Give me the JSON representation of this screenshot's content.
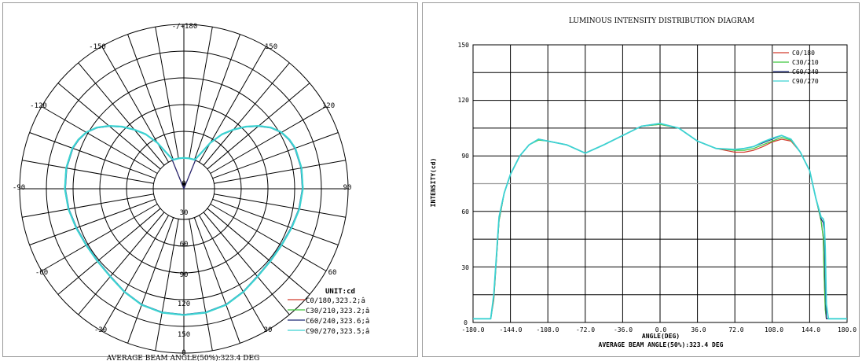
{
  "colors": {
    "c0_180": "#d23c2d",
    "c30_210": "#3ec83e",
    "c60_240": "#1e2a78",
    "c90_270": "#3cd2d2",
    "grid": "#000000",
    "reference_line": "#9a9a9a"
  },
  "chart_data": [
    {
      "type": "polar",
      "angle_labels": [
        "-/+180",
        "150",
        "120",
        "90",
        "60",
        "-150",
        "-120",
        "-90",
        "-60",
        "-30",
        "30",
        "0"
      ],
      "radial_ticks": [
        "0",
        "30",
        "60",
        "90",
        "120",
        "150"
      ],
      "radial_range": [
        0,
        150
      ],
      "unit_label": "UNIT:cd",
      "legend": [
        {
          "text": "C0/180,323.2;â",
          "color_key": "c0_180"
        },
        {
          "text": "C30/210,323.2;â",
          "color_key": "c30_210"
        },
        {
          "text": "C60/240,323.6;â",
          "color_key": "c60_240"
        },
        {
          "text": "C90/270,323.5;â",
          "color_key": "c90_270"
        }
      ],
      "caption": "AVERAGE BEAM ANGLE(50%):323.4 DEG",
      "curve_cd": {
        "angle": [
          0,
          10,
          20,
          30,
          40,
          50,
          60,
          70,
          80,
          90,
          100,
          110,
          115,
          120,
          125,
          130,
          135,
          140,
          145,
          150,
          155,
          158,
          160,
          170,
          180
        ],
        "intensity": [
          107,
          106.5,
          104,
          99,
          94,
          92,
          92,
          94,
          97,
          99,
          99.5,
          98.5,
          96,
          92,
          85,
          75,
          64,
          52,
          40,
          25,
          8,
          2,
          0,
          0,
          0
        ]
      }
    },
    {
      "type": "line",
      "title": "LUMINOUS INTENSITY DISTRIBUTION DIAGRAM",
      "xlabel": "ANGLE(DEG)",
      "ylabel": "INTENSITY(cd)",
      "caption": "AVERAGE BEAM ANGLE(50%):323.4 DEG",
      "xlim": [
        -180,
        180
      ],
      "ylim": [
        0,
        150
      ],
      "x_ticks": [
        "-180.0",
        "-144.0",
        "-108.0",
        "-72.0",
        "-36.0",
        "0.0",
        "36.0",
        "72.0",
        "108.0",
        "144.0",
        "180.0"
      ],
      "y_ticks": [
        "0",
        "30",
        "60",
        "90",
        "120",
        "150"
      ],
      "reference_line_y": 75,
      "grid": true,
      "legend_position": "top-right",
      "series": [
        {
          "name": "C0/180",
          "color_key": "c0_180",
          "x": [
            -180,
            -173,
            -171,
            -170,
            -166,
            -163,
            -160,
            -155,
            -150,
            -144,
            -135,
            -126,
            -117,
            -108,
            -90,
            -72,
            -54,
            -36,
            -18,
            0,
            18,
            36,
            54,
            72,
            81,
            90,
            99,
            108,
            117,
            126,
            135,
            144,
            150,
            155,
            157,
            158,
            159,
            160,
            162,
            170,
            180
          ],
          "y": [
            2,
            2,
            2,
            2,
            2,
            2,
            12,
            55,
            70,
            80,
            90,
            96,
            99,
            98,
            96,
            91.5,
            96,
            101,
            106,
            107,
            105,
            98,
            94,
            92,
            92,
            93,
            95,
            97.5,
            99,
            98,
            92,
            82,
            67,
            55,
            46,
            25,
            8,
            2,
            2,
            2,
            2
          ]
        },
        {
          "name": "C30/210",
          "color_key": "c30_210",
          "x": [
            -180,
            -173,
            -171,
            -170,
            -166,
            -163,
            -160,
            -155,
            -150,
            -144,
            -135,
            -126,
            -117,
            -108,
            -90,
            -72,
            -54,
            -36,
            -18,
            0,
            18,
            36,
            54,
            72,
            81,
            90,
            99,
            108,
            117,
            126,
            135,
            144,
            150,
            155,
            157,
            158,
            159,
            160,
            162,
            170,
            180
          ],
          "y": [
            2,
            2,
            2,
            2,
            2,
            2,
            13,
            55,
            70,
            80,
            90,
            96,
            98.5,
            98,
            96,
            91.5,
            96,
            101,
            106,
            107,
            105,
            98,
            94,
            93,
            93,
            94,
            96,
            98,
            100,
            98.5,
            92,
            82,
            67,
            55,
            46,
            24,
            7,
            2,
            2,
            2,
            2
          ]
        },
        {
          "name": "C60/240",
          "color_key": "c60_240",
          "x": [
            -180,
            -173,
            -171,
            -170,
            -166,
            -163,
            -160,
            -155,
            -150,
            -144,
            -135,
            -126,
            -117,
            -108,
            -90,
            -72,
            -54,
            -36,
            -18,
            0,
            18,
            36,
            54,
            72,
            81,
            90,
            99,
            108,
            117,
            126,
            135,
            144,
            150,
            155,
            157,
            158,
            159,
            160,
            162,
            170,
            180
          ],
          "y": [
            2,
            2,
            2,
            2,
            2,
            2,
            14,
            56,
            70,
            80,
            90,
            96,
            99,
            98,
            96,
            91.5,
            96,
            101,
            106,
            107.5,
            105,
            98,
            94,
            93.5,
            94,
            95,
            97,
            99,
            101,
            99,
            92,
            82,
            67,
            56,
            54,
            50,
            20,
            2,
            2,
            2,
            2
          ]
        },
        {
          "name": "C90/270",
          "color_key": "c90_270",
          "x": [
            -180,
            -173,
            -171,
            -170,
            -166,
            -163,
            -160,
            -155,
            -150,
            -144,
            -135,
            -126,
            -117,
            -108,
            -90,
            -72,
            -54,
            -36,
            -18,
            0,
            18,
            36,
            54,
            72,
            81,
            90,
            99,
            108,
            117,
            126,
            135,
            144,
            150,
            155,
            157,
            158,
            159,
            160,
            162,
            170,
            180
          ],
          "y": [
            2,
            2,
            2,
            2,
            2,
            2,
            15,
            57,
            70,
            80,
            90,
            96,
            99,
            98,
            96,
            91.5,
            96,
            101,
            106,
            107.5,
            105,
            98,
            94,
            93.5,
            94,
            95,
            97.5,
            99.5,
            101,
            99,
            92,
            82,
            67,
            57,
            56,
            54,
            40,
            10,
            2,
            2,
            2
          ]
        }
      ]
    }
  ]
}
